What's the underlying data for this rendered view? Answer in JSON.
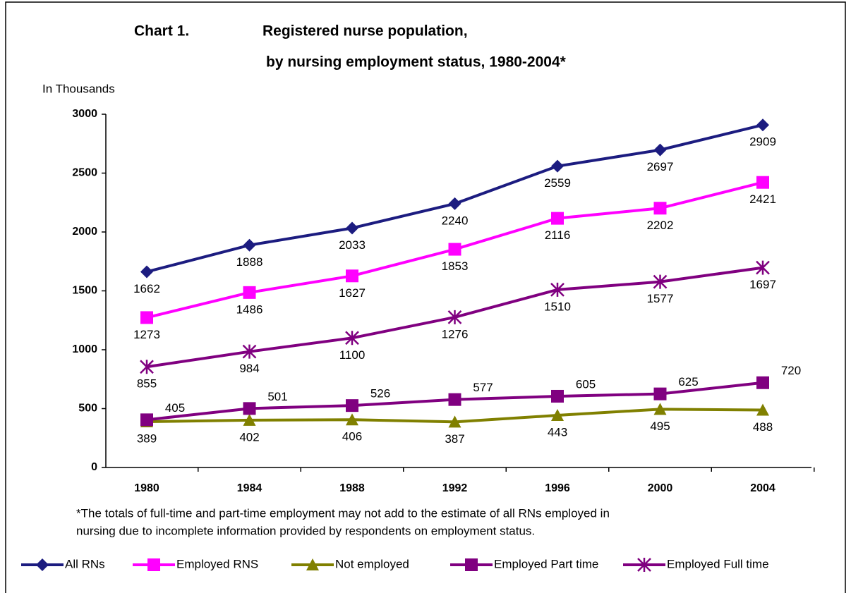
{
  "chart_data": {
    "type": "line",
    "chart_label": "Chart 1.",
    "title": [
      "Registered nurse population,",
      "by nursing employment status, 1980-2004*"
    ],
    "y_label": "In Thousands",
    "categories": [
      "1980",
      "1984",
      "1988",
      "1992",
      "1996",
      "2000",
      "2004"
    ],
    "series": [
      {
        "name": "All RNs",
        "color": "#1c1c80",
        "marker": "diamond",
        "values": [
          1662,
          1888,
          2033,
          2240,
          2559,
          2697,
          2909
        ]
      },
      {
        "name": "Employed RNS",
        "color": "#ff00ff",
        "marker": "square",
        "values": [
          1273,
          1486,
          1627,
          1853,
          2116,
          2202,
          2421
        ]
      },
      {
        "name": "Not employed",
        "color": "#808000",
        "marker": "triangle",
        "values": [
          389,
          402,
          406,
          387,
          443,
          495,
          488
        ]
      },
      {
        "name": "Employed Part time",
        "color": "#800080",
        "marker": "square",
        "values": [
          405,
          501,
          526,
          577,
          605,
          625,
          720
        ]
      },
      {
        "name": "Employed Full time",
        "color": "#800080",
        "marker": "asterisk",
        "values": [
          855,
          984,
          1100,
          1276,
          1510,
          1577,
          1697
        ]
      }
    ],
    "ylim": [
      0,
      3000
    ],
    "yticks": [
      0,
      500,
      1000,
      1500,
      2000,
      2500,
      3000
    ],
    "grid": false,
    "legend": "bottom",
    "footnote": [
      "*The totals of full-time and part-time employment may not add to the estimate of all RNs employed in",
      "nursing due to incomplete information provided by respondents on employment status."
    ]
  }
}
